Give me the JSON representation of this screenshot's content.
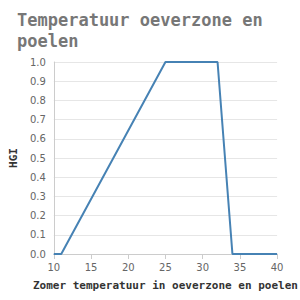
{
  "chart_data": {
    "type": "line",
    "title": "Temperatuur oeverzone en poelen",
    "x_label": "Zomer temperatuur in oeverzone en poelen",
    "y_label": "HGI",
    "x": [
      10,
      11,
      25,
      32,
      34,
      40
    ],
    "values": [
      0,
      0,
      1,
      1,
      0,
      0
    ],
    "color": "#4682b4",
    "xlim": [
      10,
      40
    ],
    "xticks": [
      10,
      15,
      20,
      25,
      30,
      35,
      40
    ],
    "ylim": [
      0,
      1
    ],
    "yticks": [
      {
        "value": 0,
        "label": "0.0"
      },
      {
        "value": 0.1,
        "label": "0.1"
      },
      {
        "value": 0.2,
        "label": "0.2"
      },
      {
        "value": 0.3,
        "label": "0.3"
      },
      {
        "value": 0.4,
        "label": "0.4"
      },
      {
        "value": 0.5,
        "label": "0.5"
      },
      {
        "value": 0.6,
        "label": "0.6"
      },
      {
        "value": 0.7,
        "label": "0.7"
      },
      {
        "value": 0.8,
        "label": "0.8"
      },
      {
        "value": 0.9,
        "label": "0.9"
      },
      {
        "value": 1,
        "label": "1.0"
      }
    ],
    "grid": true
  }
}
